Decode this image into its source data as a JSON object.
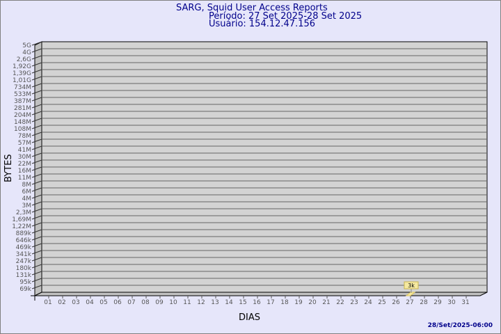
{
  "title": {
    "line1": "SARG, Squid User Access Reports",
    "line2": "Período: 27 Set 2025-28 Set 2025",
    "line3": "Usuário: 154.12.47.156"
  },
  "footer": "28/Set/2025-06:00",
  "colors": {
    "background": "#e6e6fa",
    "plot": "#d3d3d3",
    "title": "#00008b",
    "bar": "#f5e9a0"
  },
  "chart_data": {
    "type": "bar",
    "xlabel": "DIAS",
    "ylabel": "BYTES",
    "y_scale": "log",
    "y_ticks": [
      "5G",
      "4G",
      "2,6G",
      "1,92G",
      "1,39G",
      "1,01G",
      "734M",
      "533M",
      "387M",
      "281M",
      "204M",
      "148M",
      "108M",
      "78M",
      "57M",
      "41M",
      "30M",
      "22M",
      "16M",
      "11M",
      "8M",
      "6M",
      "4M",
      "3M",
      "2,3M",
      "1,69M",
      "1,22M",
      "889k",
      "646k",
      "469k",
      "341k",
      "247k",
      "180k",
      "131k",
      "95k",
      "69k"
    ],
    "categories": [
      "01",
      "02",
      "03",
      "04",
      "05",
      "06",
      "07",
      "08",
      "09",
      "10",
      "11",
      "12",
      "13",
      "14",
      "15",
      "16",
      "17",
      "18",
      "19",
      "20",
      "21",
      "22",
      "23",
      "24",
      "25",
      "26",
      "27",
      "28",
      "29",
      "30",
      "31"
    ],
    "bars": [
      {
        "day": "27",
        "value": 3000,
        "label": "3k"
      }
    ],
    "grid": true
  }
}
